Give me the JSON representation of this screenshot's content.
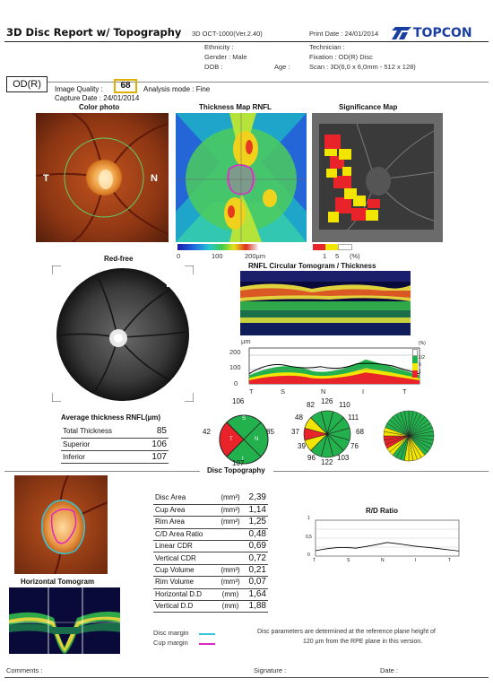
{
  "header": {
    "title": "3D Disc Report w/ Topography",
    "version": "3D OCT-1000(Ver.2.40)",
    "print_date": "Print Date : 24/01/2014",
    "brand": "TOPCON"
  },
  "patient": {
    "ethnicity": "Ethnicity :",
    "gender": "Gender : Male",
    "dob": "DOB :",
    "age": "Age :",
    "technician": "Technician :",
    "fixation": "Fixation : OD(R) Disc",
    "scan": "Scan : 3D(6,0 x 6,0mm - 512 x 128)"
  },
  "eye": "OD(R)",
  "image_quality_label": "Image Quality :",
  "image_quality_value": "68",
  "analysis_mode": "Analysis mode : Fine",
  "capture_date": "Capture Date : 24/01/2014",
  "panels": {
    "color_photo": "Color photo",
    "thickness_map": "Thickness Map RNFL",
    "significance_map": "Significance Map",
    "red_free": "Red-free",
    "rnfl_circular": "RNFL Circular Tomogram / Thickness",
    "disc_topography": "Disc Topography",
    "horizontal_tomogram": "Horizontal Tomogram",
    "rd_ratio": "R/D Ratio"
  },
  "photo_labels": {
    "temporal": "T",
    "nasal": "N"
  },
  "thickness_scale": [
    "0",
    "100",
    "200µm"
  ],
  "significance_scale": [
    "1",
    "5",
    "(%)"
  ],
  "rnfl_plot": {
    "unit": "µm",
    "yticks": [
      "200",
      "100",
      "0"
    ],
    "xticks": [
      "T",
      "S",
      "N",
      "I",
      "T"
    ],
    "legend_title": "(%)",
    "legend_items": [
      "1/2",
      "5",
      "1"
    ],
    "ylim": [
      0,
      250
    ]
  },
  "average_thickness": {
    "title": "Average thickness RNFL(µm)",
    "rows": [
      {
        "label": "Total Thickness",
        "value": "85"
      },
      {
        "label": "Superior",
        "value": "106"
      },
      {
        "label": "Inferior",
        "value": "107"
      }
    ]
  },
  "quadrants": {
    "top": "106",
    "left": "42",
    "right": "85",
    "bottom": "107",
    "S": "S",
    "T": "T",
    "N": "N",
    "I": "I"
  },
  "clock_hours": [
    "126",
    "110",
    "111",
    "68",
    "76",
    "103",
    "122",
    "96",
    "39",
    "37",
    "48",
    "82"
  ],
  "disc_params": [
    {
      "label": "Disc Area",
      "unit": "(mm²)",
      "value": "2,39"
    },
    {
      "label": "Cup Area",
      "unit": "(mm²)",
      "value": "1,14"
    },
    {
      "label": "Rim Area",
      "unit": "(mm²)",
      "value": "1,25"
    },
    {
      "label": "C/D Area Ratio",
      "unit": "",
      "value": "0,48"
    },
    {
      "label": "Linear CDR",
      "unit": "",
      "value": "0,69"
    },
    {
      "label": "Vertical CDR",
      "unit": "",
      "value": "0,72"
    },
    {
      "label": "Cup Volume",
      "unit": "(mm³)",
      "value": "0,21"
    },
    {
      "label": "Rim Volume",
      "unit": "(mm³)",
      "value": "0,07"
    },
    {
      "label": "Horizontal D.D",
      "unit": "(mm)",
      "value": "1,64"
    },
    {
      "label": "Vertical D.D",
      "unit": "(mm)",
      "value": "1,88"
    }
  ],
  "rd_plot": {
    "yticks": [
      "1",
      "0,5",
      "0"
    ],
    "xticks": [
      "T",
      "S",
      "N",
      "I",
      "T"
    ]
  },
  "legend": {
    "disc_margin": "Disc margin",
    "cup_margin": "Cup margin",
    "disc_color": "#33c7d8",
    "cup_color": "#e026c4"
  },
  "note_line1": "Disc parameters are determined at the reference plane height of",
  "note_line2": "120 µm from the RPE plane in this version.",
  "footer": {
    "comments": "Comments :",
    "signature": "Signature :",
    "date": "Date :"
  },
  "colors": {
    "brand": "#1a3fa0",
    "quality_box": "#e0b000",
    "green": "#22b14c",
    "yellow": "#f2e500",
    "red": "#e8232a"
  }
}
